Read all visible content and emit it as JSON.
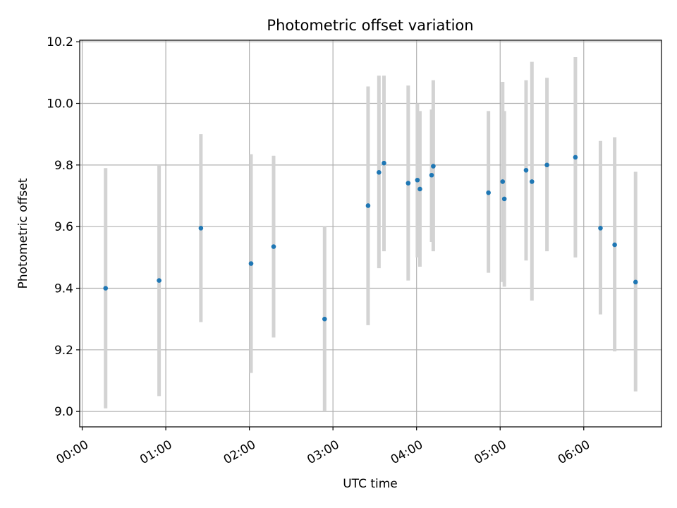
{
  "chart_data": {
    "type": "scatter",
    "title": "Photometric offset variation",
    "xlabel": "UTC time",
    "ylabel": "Photometric offset",
    "x_unit": "hours since 00:00 UTC",
    "xlim": [
      -0.03,
      6.93
    ],
    "ylim": [
      8.95,
      10.205
    ],
    "x_ticks": [
      {
        "value": 0,
        "label": "00:00"
      },
      {
        "value": 1,
        "label": "01:00"
      },
      {
        "value": 2,
        "label": "02:00"
      },
      {
        "value": 3,
        "label": "03:00"
      },
      {
        "value": 4,
        "label": "04:00"
      },
      {
        "value": 5,
        "label": "05:00"
      },
      {
        "value": 6,
        "label": "06:00"
      }
    ],
    "y_ticks": [
      {
        "value": 9.0,
        "label": "9.0"
      },
      {
        "value": 9.2,
        "label": "9.2"
      },
      {
        "value": 9.4,
        "label": "9.4"
      },
      {
        "value": 9.6,
        "label": "9.6"
      },
      {
        "value": 9.8,
        "label": "9.8"
      },
      {
        "value": 10.0,
        "label": "10.0"
      },
      {
        "value": 10.2,
        "label": "10.2"
      }
    ],
    "grid": true,
    "colors": {
      "point": "#1f77b4",
      "errorbar": "#d3d3d3",
      "grid": "#b0b0b0"
    },
    "points": [
      {
        "x": 0.28,
        "y": 9.4,
        "low": 9.01,
        "high": 9.79
      },
      {
        "x": 0.92,
        "y": 9.425,
        "low": 9.05,
        "high": 9.8
      },
      {
        "x": 1.42,
        "y": 9.595,
        "low": 9.29,
        "high": 9.9
      },
      {
        "x": 2.02,
        "y": 9.48,
        "low": 9.125,
        "high": 9.835
      },
      {
        "x": 2.29,
        "y": 9.535,
        "low": 9.24,
        "high": 9.83
      },
      {
        "x": 2.9,
        "y": 9.3,
        "low": 9.0,
        "high": 9.6
      },
      {
        "x": 3.42,
        "y": 9.668,
        "low": 9.28,
        "high": 10.055
      },
      {
        "x": 3.55,
        "y": 9.776,
        "low": 9.465,
        "high": 10.09
      },
      {
        "x": 3.61,
        "y": 9.806,
        "low": 9.52,
        "high": 10.09
      },
      {
        "x": 3.9,
        "y": 9.741,
        "low": 9.425,
        "high": 10.058
      },
      {
        "x": 4.01,
        "y": 9.751,
        "low": 9.5,
        "high": 10.0
      },
      {
        "x": 4.04,
        "y": 9.722,
        "low": 9.47,
        "high": 9.975
      },
      {
        "x": 4.18,
        "y": 9.767,
        "low": 9.55,
        "high": 9.98
      },
      {
        "x": 4.2,
        "y": 9.796,
        "low": 9.52,
        "high": 10.075
      },
      {
        "x": 4.86,
        "y": 9.71,
        "low": 9.45,
        "high": 9.975
      },
      {
        "x": 5.03,
        "y": 9.746,
        "low": 9.42,
        "high": 10.07
      },
      {
        "x": 5.05,
        "y": 9.69,
        "low": 9.405,
        "high": 9.975
      },
      {
        "x": 5.31,
        "y": 9.783,
        "low": 9.49,
        "high": 10.075
      },
      {
        "x": 5.38,
        "y": 9.746,
        "low": 9.36,
        "high": 10.135
      },
      {
        "x": 5.56,
        "y": 9.8,
        "low": 9.52,
        "high": 10.083
      },
      {
        "x": 5.9,
        "y": 9.825,
        "low": 9.5,
        "high": 10.15
      },
      {
        "x": 6.2,
        "y": 9.595,
        "low": 9.315,
        "high": 9.878
      },
      {
        "x": 6.37,
        "y": 9.541,
        "low": 9.195,
        "high": 9.89
      },
      {
        "x": 6.62,
        "y": 9.42,
        "low": 9.065,
        "high": 9.778
      }
    ]
  }
}
